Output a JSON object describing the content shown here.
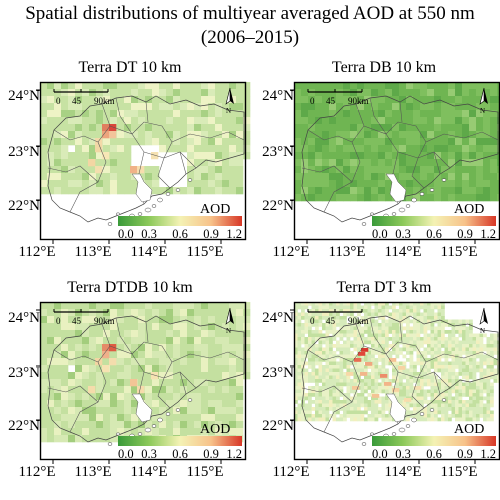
{
  "figure": {
    "title_line1": "Spatial distributions of multiyear averaged AOD at 550 nm",
    "title_line2": "(2006–2015)"
  },
  "colorbar": {
    "label": "AOD",
    "ticks": [
      "0.0",
      "0.3",
      "0.6",
      "0.9",
      "1.2"
    ],
    "colors": [
      "#3a9a3a",
      "#8cc95a",
      "#f4f2b4",
      "#f7c28a",
      "#d73727"
    ],
    "range": [
      0.0,
      1.2
    ]
  },
  "scalebar": {
    "labels": [
      "0",
      "45",
      "90km"
    ]
  },
  "north_arrow": {
    "label": "N"
  },
  "axes": {
    "y_ticks": [
      "24°N",
      "23°N",
      "22°N"
    ],
    "x_ticks": [
      "112°E",
      "113°E",
      "114°E",
      "115°E"
    ]
  },
  "panels": [
    {
      "id": "terra-dt-10km",
      "title": "Terra DT 10 km",
      "style": "dt10",
      "base_color": "#c7e2a3"
    },
    {
      "id": "terra-db-10km",
      "title": "Terra DB 10 km",
      "style": "db10",
      "base_color": "#6fb552"
    },
    {
      "id": "terra-dtdb-10km",
      "title": "Terra DTDB 10 km",
      "style": "dtdb10",
      "base_color": "#c4e0a0"
    },
    {
      "id": "terra-dt-3km",
      "title": "Terra DT 3 km",
      "style": "dt3",
      "base_color": "#d8ecbd"
    }
  ]
}
